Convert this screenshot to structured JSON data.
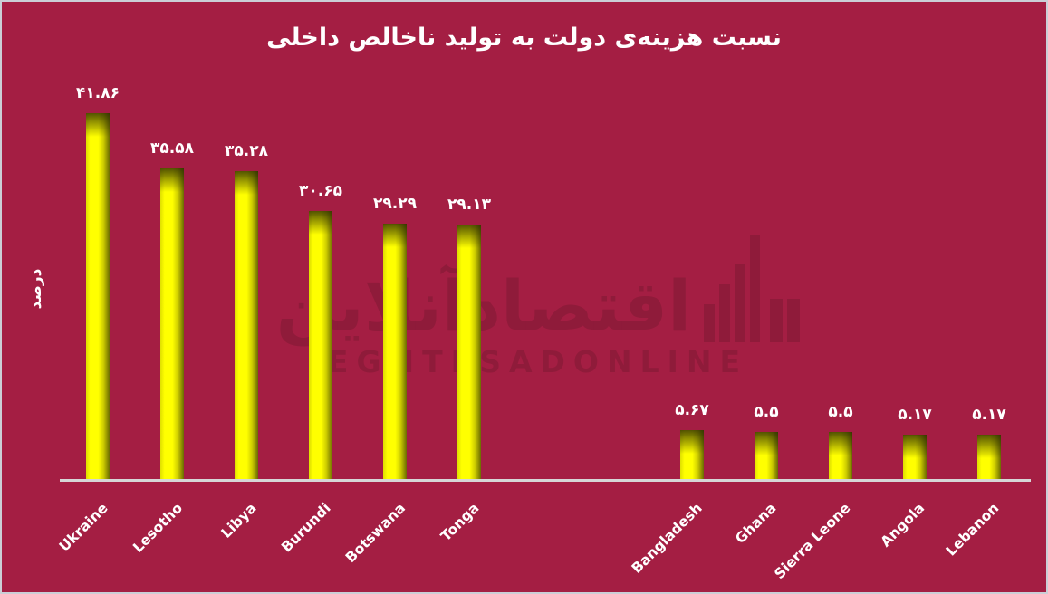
{
  "title": "نسبت هزینه‌ی دولت به تولید ناخالص داخلی",
  "ylabel": "درصد",
  "watermark": {
    "persian": "اقتصادآنلاین",
    "latin": "EGHTESADONLINE"
  },
  "colors": {
    "background": "#a41e43",
    "bar_yellow": "#ffff00",
    "bar_shadow_olive": "#6a6a00",
    "axis_line": "#d6d6d6",
    "text": "#ffffff",
    "watermark": "#8f1b3a"
  },
  "chart_data": {
    "type": "bar",
    "title": "نسبت هزینه‌ی دولت به تولید ناخالص داخلی",
    "ylabel": "درصد",
    "categories": [
      "Ukraine",
      "Lesotho",
      "Libya",
      "Burundi",
      "Botswana",
      "Tonga",
      "Bangladesh",
      "Ghana",
      "Sierra Leone",
      "Angola",
      "Lebanon"
    ],
    "values": [
      41.86,
      35.58,
      35.28,
      30.65,
      29.29,
      29.13,
      5.67,
      5.5,
      5.5,
      5.17,
      5.17
    ],
    "value_labels": [
      "۴۱.۸۶",
      "۳۵.۵۸",
      "۳۵.۲۸",
      "۳۰.۶۵",
      "۲۹.۲۹",
      "۲۹.۱۳",
      "۵.۶۷",
      "۵.۵",
      "۵.۵",
      "۵.۱۷",
      "۵.۱۷"
    ],
    "slots": [
      0,
      1,
      2,
      3,
      4,
      5,
      8,
      9,
      10,
      11,
      12
    ],
    "bar_color": "#ffff00",
    "grid": false,
    "legend": false,
    "ylim": [
      0,
      44
    ],
    "category_label_rotation_deg": 45,
    "notes": "two empty category slots between Tonga and Bangladesh"
  }
}
